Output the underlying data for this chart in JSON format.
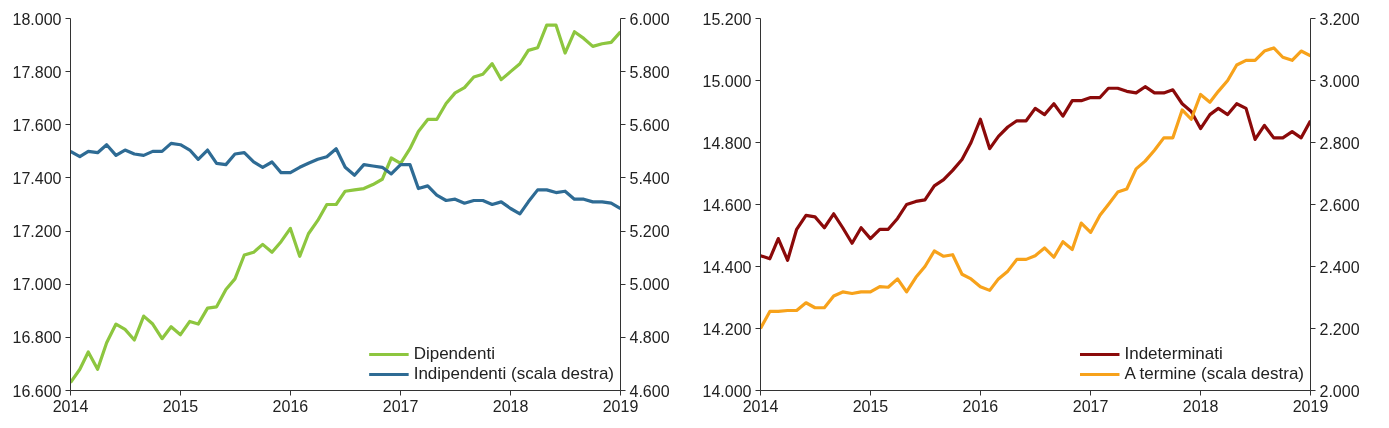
{
  "chart_data": [
    {
      "type": "line",
      "x": [
        "2014-01",
        "2014-02",
        "2014-03",
        "2014-04",
        "2014-05",
        "2014-06",
        "2014-07",
        "2014-08",
        "2014-09",
        "2014-10",
        "2014-11",
        "2014-12",
        "2015-01",
        "2015-02",
        "2015-03",
        "2015-04",
        "2015-05",
        "2015-06",
        "2015-07",
        "2015-08",
        "2015-09",
        "2015-10",
        "2015-11",
        "2015-12",
        "2016-01",
        "2016-02",
        "2016-03",
        "2016-04",
        "2016-05",
        "2016-06",
        "2016-07",
        "2016-08",
        "2016-09",
        "2016-10",
        "2016-11",
        "2016-12",
        "2017-01",
        "2017-02",
        "2017-03",
        "2017-04",
        "2017-05",
        "2017-06",
        "2017-07",
        "2017-08",
        "2017-09",
        "2017-10",
        "2017-11",
        "2017-12",
        "2018-01",
        "2018-02",
        "2018-03",
        "2018-04",
        "2018-05",
        "2018-06",
        "2018-07",
        "2018-08",
        "2018-09",
        "2018-10",
        "2018-11",
        "2018-12",
        "2019-01"
      ],
      "series": [
        {
          "name": "Dipendenti",
          "color": "#8dc63f",
          "values": [
            16630,
            16680,
            16745,
            16680,
            16780,
            16850,
            16830,
            16790,
            16880,
            16850,
            16795,
            16840,
            16810,
            16860,
            16850,
            16910,
            16915,
            16980,
            17020,
            17110,
            17120,
            17150,
            17120,
            17160,
            17210,
            17105,
            17190,
            17240,
            17300,
            17300,
            17350,
            17355,
            17360,
            17375,
            17395,
            17475,
            17455,
            17510,
            17575,
            17620,
            17620,
            17680,
            17720,
            17740,
            17780,
            17790,
            17830,
            17770,
            17800,
            17830,
            17880,
            17890,
            17975,
            17975,
            17870,
            17950,
            17925,
            17895,
            17905,
            17910,
            17950
          ]
        },
        {
          "name": "Indipendenti (scala destra)",
          "color": "#2e6b94",
          "axis": "y2",
          "values": [
            5500,
            5480,
            5500,
            5495,
            5525,
            5485,
            5505,
            5490,
            5485,
            5500,
            5500,
            5530,
            5525,
            5505,
            5470,
            5505,
            5455,
            5450,
            5490,
            5495,
            5460,
            5440,
            5460,
            5420,
            5420,
            5440,
            5455,
            5470,
            5480,
            5510,
            5440,
            5410,
            5450,
            5445,
            5440,
            5415,
            5450,
            5450,
            5360,
            5370,
            5335,
            5315,
            5320,
            5305,
            5315,
            5315,
            5300,
            5310,
            5285,
            5265,
            5310,
            5355,
            5355,
            5345,
            5350,
            5320,
            5320,
            5310,
            5310,
            5305,
            5285
          ]
        }
      ],
      "xlim": [
        "2014-01",
        "2019-01"
      ],
      "xticks": [
        "2014",
        "2015",
        "2016",
        "2017",
        "2018",
        "2019"
      ],
      "ylim": [
        16600,
        18000
      ],
      "yticks": [
        {
          "value": 16600,
          "label": "16.600"
        },
        {
          "value": 16800,
          "label": "16.800"
        },
        {
          "value": 17000,
          "label": "17.000"
        },
        {
          "value": 17200,
          "label": "17.200"
        },
        {
          "value": 17400,
          "label": "17.400"
        },
        {
          "value": 17600,
          "label": "17.600"
        },
        {
          "value": 17800,
          "label": "17.800"
        },
        {
          "value": 18000,
          "label": "18.000"
        }
      ],
      "y2lim": [
        4600,
        6000
      ],
      "y2ticks": [
        {
          "value": 4600,
          "label": "4.600"
        },
        {
          "value": 4800,
          "label": "4.800"
        },
        {
          "value": 5000,
          "label": "5.000"
        },
        {
          "value": 5200,
          "label": "5.200"
        },
        {
          "value": 5400,
          "label": "5.400"
        },
        {
          "value": 5600,
          "label": "5.600"
        },
        {
          "value": 5800,
          "label": "5.800"
        },
        {
          "value": 6000,
          "label": "6.000"
        }
      ],
      "grid": false,
      "legend": "bottom right"
    },
    {
      "type": "line",
      "x": [
        "2014-01",
        "2014-02",
        "2014-03",
        "2014-04",
        "2014-05",
        "2014-06",
        "2014-07",
        "2014-08",
        "2014-09",
        "2014-10",
        "2014-11",
        "2014-12",
        "2015-01",
        "2015-02",
        "2015-03",
        "2015-04",
        "2015-05",
        "2015-06",
        "2015-07",
        "2015-08",
        "2015-09",
        "2015-10",
        "2015-11",
        "2015-12",
        "2016-01",
        "2016-02",
        "2016-03",
        "2016-04",
        "2016-05",
        "2016-06",
        "2016-07",
        "2016-08",
        "2016-09",
        "2016-10",
        "2016-11",
        "2016-12",
        "2017-01",
        "2017-02",
        "2017-03",
        "2017-04",
        "2017-05",
        "2017-06",
        "2017-07",
        "2017-08",
        "2017-09",
        "2017-10",
        "2017-11",
        "2017-12",
        "2018-01",
        "2018-02",
        "2018-03",
        "2018-04",
        "2018-05",
        "2018-06",
        "2018-07",
        "2018-08",
        "2018-09",
        "2018-10",
        "2018-11",
        "2018-12",
        "2019-01"
      ],
      "series": [
        {
          "name": "Indeterminati",
          "color": "#8b0a0a",
          "values": [
            14435,
            14425,
            14490,
            14420,
            14520,
            14565,
            14560,
            14525,
            14570,
            14525,
            14475,
            14525,
            14490,
            14520,
            14520,
            14555,
            14600,
            14610,
            14615,
            14660,
            14680,
            14710,
            14745,
            14800,
            14875,
            14780,
            14820,
            14850,
            14870,
            14870,
            14910,
            14890,
            14925,
            14885,
            14935,
            14935,
            14945,
            14945,
            14975,
            14975,
            14965,
            14960,
            14980,
            14960,
            14960,
            14970,
            14925,
            14900,
            14845,
            14890,
            14910,
            14890,
            14925,
            14910,
            14810,
            14855,
            14815,
            14815,
            14835,
            14815,
            14870
          ]
        },
        {
          "name": "A termine (scala destra)",
          "color": "#f7a21b",
          "axis": "y2",
          "values": [
            2200,
            2255,
            2255,
            2258,
            2258,
            2283,
            2267,
            2267,
            2305,
            2318,
            2313,
            2318,
            2318,
            2335,
            2333,
            2360,
            2318,
            2365,
            2400,
            2450,
            2433,
            2438,
            2375,
            2360,
            2335,
            2323,
            2360,
            2385,
            2423,
            2423,
            2435,
            2460,
            2430,
            2480,
            2455,
            2540,
            2510,
            2565,
            2600,
            2640,
            2650,
            2715,
            2740,
            2775,
            2815,
            2815,
            2905,
            2875,
            2955,
            2930,
            2965,
            3000,
            3050,
            3065,
            3065,
            3095,
            3105,
            3075,
            3065,
            3095,
            3080
          ]
        }
      ],
      "xlim": [
        "2014-01",
        "2019-01"
      ],
      "xticks": [
        "2014",
        "2015",
        "2016",
        "2017",
        "2018",
        "2019"
      ],
      "ylim": [
        14000,
        15200
      ],
      "yticks": [
        {
          "value": 14000,
          "label": "14.000"
        },
        {
          "value": 14200,
          "label": "14.200"
        },
        {
          "value": 14400,
          "label": "14.400"
        },
        {
          "value": 14600,
          "label": "14.600"
        },
        {
          "value": 14800,
          "label": "14.800"
        },
        {
          "value": 15000,
          "label": "15.000"
        },
        {
          "value": 15200,
          "label": "15.200"
        }
      ],
      "y2lim": [
        2000,
        3200
      ],
      "y2ticks": [
        {
          "value": 2000,
          "label": "2.000"
        },
        {
          "value": 2200,
          "label": "2.200"
        },
        {
          "value": 2400,
          "label": "2.400"
        },
        {
          "value": 2600,
          "label": "2.600"
        },
        {
          "value": 2800,
          "label": "2.800"
        },
        {
          "value": 3000,
          "label": "3.000"
        },
        {
          "value": 3200,
          "label": "3.200"
        }
      ],
      "grid": false,
      "legend": "bottom right"
    }
  ]
}
